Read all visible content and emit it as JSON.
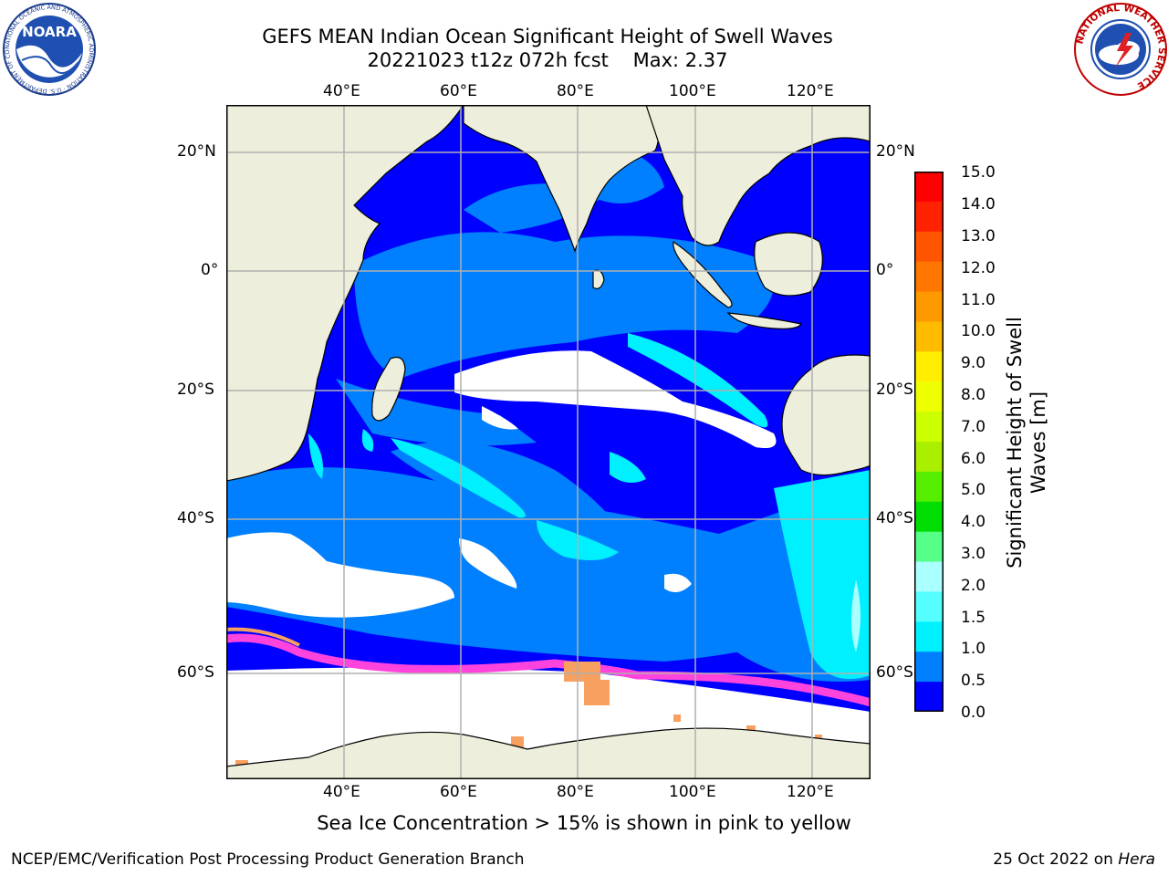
{
  "header": {
    "title_line1": "GEFS MEAN Indian Ocean Significant Height of Swell Waves",
    "title_line2": "20221023 t12z 072h fcst    Max: 2.37"
  },
  "logos": {
    "left": {
      "name": "NOARA",
      "ring_text": "NATIONAL OCEANIC AND ATMOSPHERIC ADMINISTRATION · U.S. DEPARTMENT OF COMMERCE"
    },
    "right": {
      "ring_text": "NATIONAL WEATHER SERVICE"
    }
  },
  "map": {
    "lon_ticks": [
      "40°E",
      "60°E",
      "80°E",
      "100°E",
      "120°E"
    ],
    "lat_ticks": [
      "20°N",
      "0°",
      "20°S",
      "40°S",
      "60°S"
    ],
    "colors": {
      "ocean_deep": "#0000ff",
      "ocean_mid": "#0080ff",
      "ocean_light": "#00f0ff",
      "land": "#eeeedc",
      "ice_pink": "#ff44dd",
      "ice_orange": "#f8a060",
      "no_data": "#ffffff"
    }
  },
  "colorbar": {
    "label_line1": "Significant Height of Swell",
    "label_line2": "Waves [m]",
    "ticks": [
      "15.0",
      "14.0",
      "13.0",
      "12.0",
      "11.0",
      "10.0",
      "9.0",
      "8.0",
      "7.0",
      "6.0",
      "5.0",
      "4.0",
      "3.0",
      "2.0",
      "1.5",
      "1.0",
      "0.5",
      "0.0"
    ],
    "colors_top_to_bottom": [
      "#ff0000",
      "#ff2200",
      "#ff5500",
      "#ff7700",
      "#ff9900",
      "#ffbb00",
      "#ffee00",
      "#eeff00",
      "#ccff00",
      "#aaee00",
      "#55ee00",
      "#00dd00",
      "#55ff88",
      "#aaffff",
      "#55ffff",
      "#00f0ff",
      "#0080ff",
      "#0000ff"
    ]
  },
  "caption": "Sea Ice Concentration > 15% is shown in pink to yellow",
  "footer": {
    "left": "NCEP/EMC/Verification Post Processing Product Generation Branch",
    "right_prefix": "25 Oct 2022 on",
    "right_host": "Hera"
  }
}
